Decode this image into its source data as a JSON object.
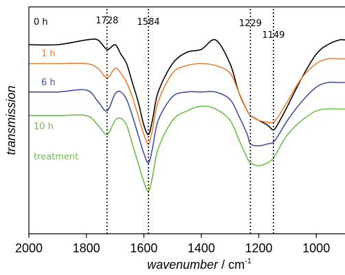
{
  "chart_data": {
    "type": "line",
    "xlabel": {
      "name": "wavenumber",
      "unit": "cm",
      "unit_exponent": "-1"
    },
    "ylabel": "transmission",
    "xlim": [
      2000,
      900
    ],
    "x_reversed": true,
    "x_ticks": [
      2000,
      1800,
      1600,
      1400,
      1200,
      1000
    ],
    "y_ticks_shown": false,
    "grid": false,
    "legend": "inline labels",
    "reference_lines": [
      1728,
      1584,
      1229,
      1149
    ],
    "series": [
      {
        "name": "0 h",
        "color": "#000000",
        "x": [
          2000,
          1900,
          1800,
          1760,
          1728,
          1700,
          1680,
          1660,
          1640,
          1620,
          1600,
          1584,
          1570,
          1550,
          1500,
          1450,
          1400,
          1350,
          1300,
          1270,
          1240,
          1229,
          1200,
          1170,
          1149,
          1130,
          1100,
          1050,
          1000,
          960,
          920,
          900
        ],
        "y": [
          10.0,
          10.0,
          10.5,
          10.5,
          9.5,
          10.0,
          9.0,
          8.0,
          6.0,
          4.0,
          1.5,
          0.5,
          2.0,
          5.0,
          8.0,
          9.2,
          9.5,
          10.5,
          8.0,
          5.0,
          3.0,
          2.5,
          2.0,
          1.5,
          1.0,
          1.8,
          3.5,
          6.5,
          9.0,
          10.0,
          10.5,
          10.5
        ]
      },
      {
        "name": "1 h",
        "color": "#ED7D31",
        "x": [
          2000,
          1900,
          1800,
          1760,
          1728,
          1700,
          1680,
          1660,
          1640,
          1620,
          1600,
          1584,
          1570,
          1550,
          1500,
          1450,
          1400,
          1350,
          1300,
          1270,
          1240,
          1229,
          1200,
          1170,
          1149,
          1130,
          1100,
          1050,
          1000,
          960,
          920,
          900
        ],
        "y": [
          8.0,
          8.0,
          8.0,
          7.5,
          6.5,
          7.5,
          7.0,
          6.0,
          4.5,
          2.5,
          0.5,
          -0.5,
          1.0,
          4.0,
          7.0,
          7.8,
          8.0,
          7.8,
          7.0,
          5.0,
          3.0,
          2.5,
          2.0,
          1.8,
          1.8,
          2.5,
          4.0,
          6.5,
          8.0,
          8.5,
          8.5,
          8.5
        ]
      },
      {
        "name": "6 h",
        "color": "#3F51A0",
        "x": [
          2000,
          1900,
          1800,
          1760,
          1728,
          1700,
          1680,
          1660,
          1640,
          1620,
          1600,
          1584,
          1570,
          1550,
          1500,
          1450,
          1400,
          1350,
          1300,
          1270,
          1240,
          1229,
          1200,
          1170,
          1149,
          1130,
          1100,
          1050,
          1000,
          960,
          920,
          900
        ],
        "y": [
          5.0,
          5.0,
          5.2,
          4.0,
          3.0,
          4.8,
          5.0,
          4.2,
          2.5,
          0.5,
          -1.5,
          -2.5,
          -1.0,
          2.0,
          4.5,
          5.0,
          5.0,
          5.0,
          4.2,
          2.5,
          0.5,
          -0.5,
          -0.7,
          -0.5,
          -0.3,
          0.5,
          2.0,
          4.0,
          5.5,
          6.0,
          6.0,
          6.0
        ]
      },
      {
        "name": "10 h",
        "color": "#6BBF45",
        "x": [
          2000,
          1900,
          1800,
          1760,
          1728,
          1700,
          1680,
          1660,
          1640,
          1620,
          1600,
          1584,
          1570,
          1550,
          1500,
          1450,
          1400,
          1350,
          1300,
          1270,
          1240,
          1229,
          1200,
          1170,
          1149,
          1130,
          1100,
          1050,
          1000,
          960,
          920,
          900
        ],
        "y": [
          2.5,
          2.5,
          2.5,
          1.5,
          0.5,
          2.0,
          2.2,
          1.5,
          -0.5,
          -2.5,
          -4.5,
          -5.5,
          -4.0,
          -1.0,
          2.0,
          3.0,
          3.5,
          3.2,
          2.0,
          0.0,
          -2.0,
          -2.5,
          -2.8,
          -2.5,
          -2.0,
          -1.0,
          0.5,
          2.0,
          3.0,
          3.2,
          3.2,
          3.2
        ]
      },
      {
        "name": "treatment",
        "color": "#6BBF45"
      }
    ]
  }
}
